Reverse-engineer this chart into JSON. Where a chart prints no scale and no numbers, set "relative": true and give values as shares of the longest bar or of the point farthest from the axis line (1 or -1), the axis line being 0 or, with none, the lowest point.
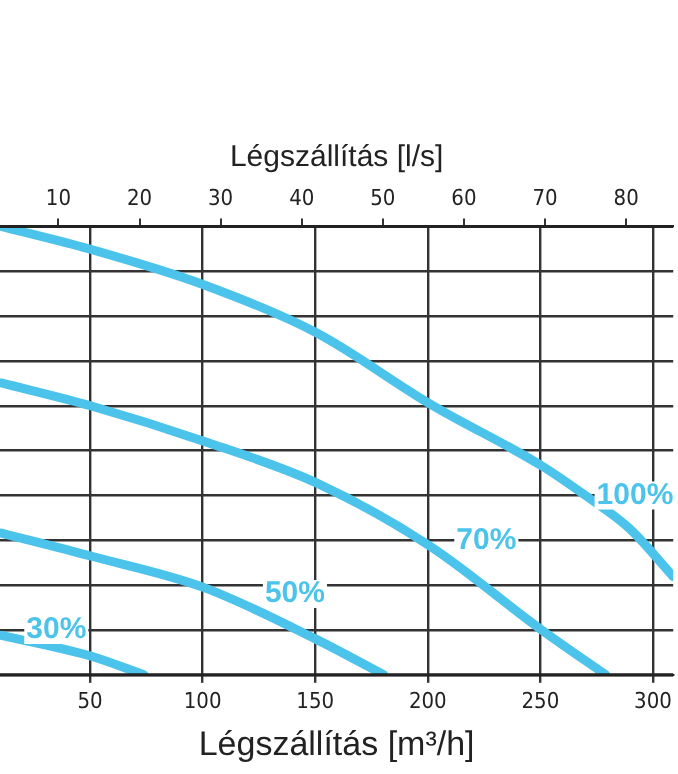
{
  "chart_data": {
    "type": "line",
    "relative": true,
    "xlabel": "Légszállítás [m³/h]",
    "x2label": "Légszállítás [l/s]",
    "xlim": [
      10,
      309
    ],
    "xticks": [
      50,
      100,
      150,
      200,
      250,
      300
    ],
    "x2lim": [
      2.8,
      85.8
    ],
    "x2ticks": [
      10,
      20,
      30,
      40,
      50,
      60,
      70,
      80
    ],
    "series": [
      {
        "color": "#4cc3ea",
        "x": [
          10.6,
          50.2,
          100.4,
          150.5,
          200.7,
          250.9,
          268.5,
          289.6,
          309
        ],
        "values": [
          1.0,
          0.949,
          0.87,
          0.763,
          0.605,
          0.465,
          0.405,
          0.326,
          0.219
        ]
      },
      {
        "color": "#4cc3ea",
        "x": [
          10.6,
          50.2,
          100.4,
          150.5,
          200.7,
          250,
          279
        ],
        "values": [
          0.651,
          0.6,
          0.521,
          0.428,
          0.288,
          0.102,
          0
        ]
      },
      {
        "color": "#4cc3ea",
        "x": [
          10.6,
          50.2,
          100.4,
          150.5,
          180.4
        ],
        "values": [
          0.316,
          0.265,
          0.195,
          0.079,
          0
        ]
      },
      {
        "color": "#4cc3ea",
        "x": [
          10.6,
          50.2,
          73.9
        ],
        "values": [
          0.088,
          0.042,
          0
        ]
      }
    ],
    "annotations": [
      {
        "text": "100%",
        "x": 292,
        "y": 0.4
      },
      {
        "text": "70%",
        "x": 226,
        "y": 0.3
      },
      {
        "text": "50%",
        "x": 141,
        "y": 0.18
      },
      {
        "text": "30%",
        "x": 35,
        "y": 0.1
      }
    ],
    "grid": true,
    "legend": false,
    "tick_labels": "x",
    "marker": "none",
    "line_style": "solid"
  }
}
